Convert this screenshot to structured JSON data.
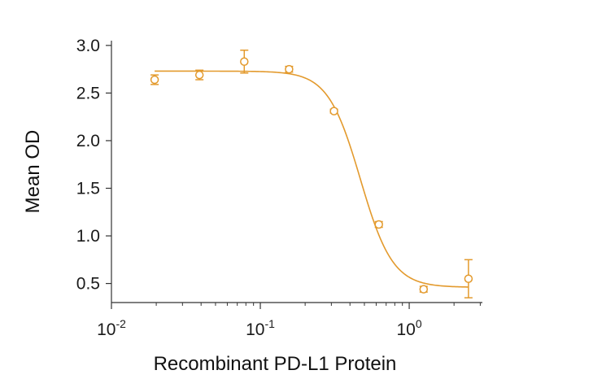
{
  "chart_data": {
    "type": "scatter",
    "xscale": "log",
    "xlim": [
      0.01,
      3.1
    ],
    "ylim": [
      0.3,
      3.05
    ],
    "xlabel": "Recombinant PD-L1 Protein",
    "ylabel": "Mean OD",
    "grid": false,
    "legend": "none",
    "x_ticks": [
      {
        "value": 0.01,
        "base": "10",
        "exp": "-2"
      },
      {
        "value": 0.1,
        "base": "10",
        "exp": "-1"
      },
      {
        "value": 1,
        "base": "10",
        "exp": "0"
      }
    ],
    "y_ticks": [
      {
        "value": 3.0,
        "label": "3.0"
      },
      {
        "value": 2.5,
        "label": "2.5"
      },
      {
        "value": 2.0,
        "label": "2.0"
      },
      {
        "value": 1.5,
        "label": "1.5"
      },
      {
        "value": 1.0,
        "label": "1.0"
      },
      {
        "value": 0.5,
        "label": "0.5"
      }
    ],
    "points": [
      {
        "x": 0.0195,
        "y": 2.64,
        "err": 0.05
      },
      {
        "x": 0.039,
        "y": 2.69,
        "err": 0.05
      },
      {
        "x": 0.078,
        "y": 2.83,
        "err": 0.12
      },
      {
        "x": 0.156,
        "y": 2.75,
        "err": 0.03
      },
      {
        "x": 0.3125,
        "y": 2.31,
        "err": 0.02
      },
      {
        "x": 0.625,
        "y": 1.12,
        "err": 0.03
      },
      {
        "x": 1.25,
        "y": 0.44,
        "err": 0.03
      },
      {
        "x": 2.5,
        "y": 0.55,
        "err": 0.2
      }
    ],
    "fit": {
      "model": "4PL",
      "top": 2.73,
      "bottom": 0.46,
      "ec50": 0.47,
      "hill": 4.0
    },
    "color": "#e39a2d"
  }
}
